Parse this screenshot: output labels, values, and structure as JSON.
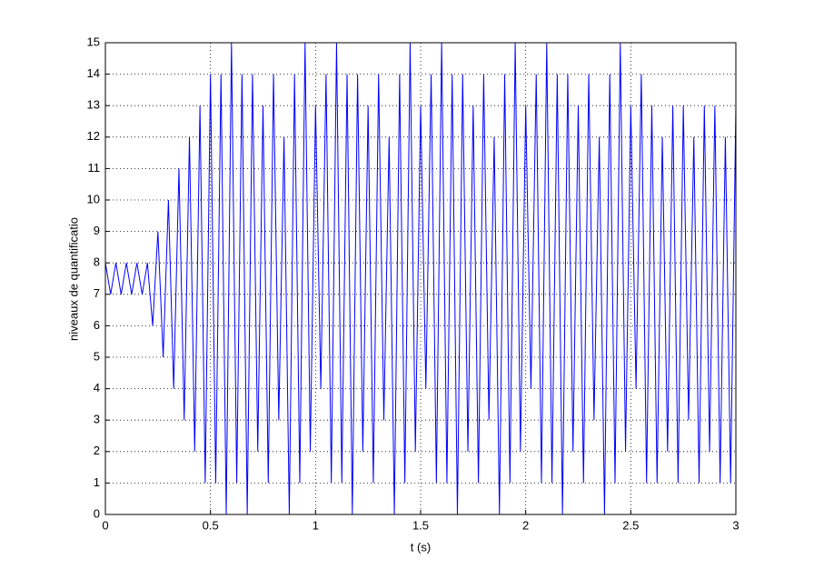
{
  "chart_data": {
    "type": "line",
    "x_label": "t (s)",
    "y_label": "niveaux de quantificatio",
    "x": [
      0,
      0.025,
      0.05,
      0.075,
      0.1,
      0.125,
      0.15,
      0.175,
      0.2,
      0.225,
      0.25,
      0.275,
      0.3,
      0.325,
      0.35,
      0.375,
      0.4,
      0.425,
      0.45,
      0.475,
      0.5,
      0.525,
      0.55,
      0.575,
      0.6,
      0.625,
      0.65,
      0.675,
      0.7,
      0.725,
      0.75,
      0.775,
      0.8,
      0.825,
      0.85,
      0.875,
      0.9,
      0.925,
      0.95,
      0.975,
      1,
      1.025,
      1.05,
      1.075,
      1.1,
      1.125,
      1.15,
      1.175,
      1.2,
      1.225,
      1.25,
      1.275,
      1.3,
      1.325,
      1.35,
      1.375,
      1.4,
      1.425,
      1.45,
      1.475,
      1.5,
      1.525,
      1.55,
      1.575,
      1.6,
      1.625,
      1.65,
      1.675,
      1.7,
      1.725,
      1.75,
      1.775,
      1.8,
      1.825,
      1.85,
      1.875,
      1.9,
      1.925,
      1.95,
      1.975,
      2,
      2.025,
      2.05,
      2.075,
      2.1,
      2.125,
      2.15,
      2.175,
      2.2,
      2.225,
      2.25,
      2.275,
      2.3,
      2.325,
      2.35,
      2.375,
      2.4,
      2.425,
      2.45,
      2.475,
      2.5,
      2.525,
      2.55,
      2.575,
      2.6,
      2.625,
      2.65,
      2.675,
      2.7,
      2.725,
      2.75,
      2.775,
      2.8,
      2.825,
      2.85,
      2.875,
      2.9,
      2.925,
      2.95,
      2.975,
      3
    ],
    "series": [
      {
        "color": "#0000ff",
        "values": [
          8,
          7,
          8,
          7,
          8,
          7,
          8,
          7,
          8,
          6,
          9,
          5,
          10,
          4,
          11,
          3,
          12,
          2,
          13,
          1,
          14,
          1,
          14,
          0,
          15,
          1,
          14,
          0,
          14,
          2,
          13,
          1,
          14,
          3,
          12,
          0,
          14,
          1,
          15,
          2,
          13,
          4,
          14,
          1,
          15,
          1,
          14,
          0,
          14,
          2,
          13,
          1,
          14,
          3,
          12,
          0,
          14,
          1,
          15,
          2,
          13,
          4,
          14,
          1,
          15,
          1,
          14,
          0,
          14,
          2,
          13,
          1,
          14,
          3,
          12,
          0,
          14,
          1,
          15,
          2,
          13,
          4,
          14,
          1,
          15,
          1,
          14,
          0,
          14,
          2,
          13,
          1,
          14,
          3,
          12,
          0,
          14,
          1,
          15,
          2,
          13,
          4,
          14,
          1,
          13,
          1,
          12,
          2,
          13,
          1,
          13,
          3,
          12,
          1,
          13,
          2,
          13,
          1,
          12,
          1,
          13
        ]
      }
    ],
    "xlim": [
      0,
      3
    ],
    "xticks": [
      0,
      0.5,
      1,
      1.5,
      2,
      2.5,
      3
    ],
    "ylim": [
      0,
      15
    ],
    "yticks": [
      0,
      1,
      2,
      3,
      4,
      5,
      6,
      7,
      8,
      9,
      10,
      11,
      12,
      13,
      14,
      15
    ],
    "grid": true
  }
}
